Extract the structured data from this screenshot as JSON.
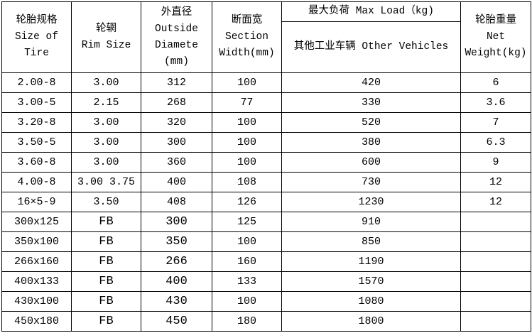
{
  "headers": {
    "size": [
      "轮胎规格",
      "Size of",
      "Tire"
    ],
    "rim": [
      "轮辋",
      "Rim Size"
    ],
    "diameter": [
      "外直径",
      "Outside",
      "Diamete",
      "(mm)"
    ],
    "section": [
      "断面宽",
      "Section",
      "Width(mm)"
    ],
    "max_load": "最大负荷 Max Load（kg)",
    "other_vehicles": "其他工业车辆 Other Vehicles",
    "weight": [
      "轮胎重量",
      "Net",
      "Weight(kg)"
    ]
  },
  "rows": [
    [
      "2.00-8",
      "3.00",
      "312",
      "100",
      "420",
      "6"
    ],
    [
      "3.00-5",
      "2.15",
      "268",
      "77",
      "330",
      "3.6"
    ],
    [
      "3.20-8",
      "3.00",
      "320",
      "100",
      "520",
      "7"
    ],
    [
      "3.50-5",
      "3.00",
      "300",
      "100",
      "380",
      "6.3"
    ],
    [
      "3.60-8",
      "3.00",
      "360",
      "100",
      "600",
      "9"
    ],
    [
      "4.00-8",
      "3.00 3.75",
      "400",
      "108",
      "730",
      "12"
    ],
    [
      "16×5-9",
      "3.50",
      "408",
      "126",
      "1230",
      "12"
    ],
    [
      "300x125",
      "FB",
      "300",
      "125",
      "910",
      ""
    ],
    [
      "350x100",
      "FB",
      "350",
      "100",
      "850",
      ""
    ],
    [
      "266x160",
      "FB",
      "266",
      "160",
      "1190",
      ""
    ],
    [
      "400x133",
      "FB",
      "400",
      "133",
      "1570",
      ""
    ],
    [
      "430x100",
      "FB",
      "430",
      "100",
      "1080",
      ""
    ],
    [
      "450x180",
      "FB",
      "450",
      "180",
      "1800",
      ""
    ]
  ]
}
